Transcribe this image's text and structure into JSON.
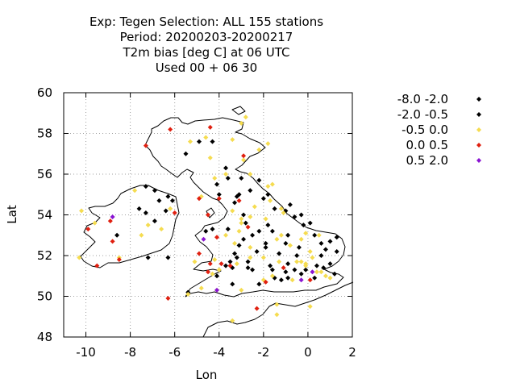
{
  "title_lines": [
    "Exp: Tegen   Selection: ALL    155 stations",
    "Period: 20200203-20200217",
    "T2m bias [deg C] at  06 UTC",
    "Used  00 + 06 30"
  ],
  "chart_data": {
    "type": "scatter",
    "xlabel": "Lon",
    "ylabel": "Lat",
    "xlim": [
      -11,
      2
    ],
    "ylim": [
      48,
      60
    ],
    "xticks": [
      -10,
      -8,
      -6,
      -4,
      -2,
      0,
      2
    ],
    "yticks": [
      48,
      50,
      52,
      54,
      56,
      58,
      60
    ],
    "grid": true,
    "legend_position": "right",
    "series": [
      {
        "name": "-8.0 -2.0",
        "color": "#000000",
        "points": [
          [
            -7.3,
            55.4
          ],
          [
            -6.9,
            55.2
          ],
          [
            -6.3,
            54.9
          ],
          [
            -6.1,
            54.7
          ],
          [
            -6.7,
            54.7
          ],
          [
            -6.4,
            54.2
          ],
          [
            -7.6,
            54.3
          ],
          [
            -7.3,
            54.1
          ],
          [
            -6.9,
            53.7
          ],
          [
            -8.6,
            53.0
          ],
          [
            -7.2,
            51.9
          ],
          [
            -6.3,
            51.9
          ],
          [
            -5.4,
            50.2
          ],
          [
            -5.5,
            57.0
          ],
          [
            -4.9,
            57.6
          ],
          [
            -4.3,
            57.6
          ],
          [
            -3.7,
            56.3
          ],
          [
            -3.0,
            55.8
          ],
          [
            -2.2,
            55.7
          ],
          [
            -2.6,
            55.2
          ],
          [
            -1.8,
            55.0
          ],
          [
            -3.1,
            55.0
          ],
          [
            -4.1,
            55.5
          ],
          [
            -4.0,
            55.0
          ],
          [
            -3.3,
            54.6
          ],
          [
            -2.9,
            54.0
          ],
          [
            -1.5,
            54.3
          ],
          [
            -1.0,
            54.2
          ],
          [
            -0.6,
            53.9
          ],
          [
            -0.3,
            54.0
          ],
          [
            -2.8,
            53.6
          ],
          [
            -3.6,
            53.3
          ],
          [
            -1.8,
            53.5
          ],
          [
            -1.6,
            53.2
          ],
          [
            -2.5,
            53.0
          ],
          [
            -1.9,
            52.6
          ],
          [
            -1.0,
            52.6
          ],
          [
            -1.3,
            52.1
          ],
          [
            -0.2,
            53.5
          ],
          [
            0.1,
            53.6
          ],
          [
            0.3,
            53.0
          ],
          [
            0.6,
            52.6
          ],
          [
            1.0,
            52.7
          ],
          [
            1.3,
            52.9
          ],
          [
            1.3,
            52.2
          ],
          [
            0.8,
            52.3
          ],
          [
            -0.4,
            52.4
          ],
          [
            -2.3,
            52.2
          ],
          [
            -3.1,
            52.5
          ],
          [
            -3.3,
            52.1
          ],
          [
            -3.2,
            51.9
          ],
          [
            -2.7,
            51.7
          ],
          [
            -2.7,
            51.4
          ],
          [
            -1.7,
            51.5
          ],
          [
            -1.6,
            51.3
          ],
          [
            -0.9,
            51.6
          ],
          [
            -0.6,
            51.3
          ],
          [
            -0.1,
            51.3
          ],
          [
            -1.2,
            50.8
          ],
          [
            -1.5,
            50.9
          ],
          [
            -3.7,
            51.5
          ],
          [
            -4.1,
            51.0
          ],
          [
            -3.4,
            50.6
          ],
          [
            -2.2,
            50.6
          ],
          [
            -0.9,
            50.9
          ],
          [
            0.4,
            51.5
          ],
          [
            0.3,
            50.9
          ],
          [
            1.0,
            51.6
          ],
          [
            0.6,
            52.0
          ],
          [
            1.2,
            51.1
          ],
          [
            -4.6,
            53.2
          ],
          [
            -4.3,
            53.3
          ],
          [
            -3.4,
            51.4
          ]
        ]
      },
      {
        "name": "-2.0 -0.5",
        "color": "#000000",
        "points": [
          [
            -3.6,
            55.8
          ],
          [
            -3.2,
            54.9
          ],
          [
            -2.0,
            54.8
          ],
          [
            -0.8,
            54.5
          ],
          [
            -1.9,
            52.4
          ],
          [
            -3.5,
            51.7
          ],
          [
            -2.5,
            51.3
          ],
          [
            -0.3,
            51.1
          ],
          [
            0.7,
            51.4
          ],
          [
            -0.5,
            52.0
          ],
          [
            -2.2,
            53.2
          ],
          [
            -0.9,
            53.0
          ],
          [
            -1.0,
            51.2
          ],
          [
            -2.9,
            52.8
          ]
        ]
      },
      {
        "name": "-0.5 0.0",
        "color": "#f5dc50",
        "points": [
          [
            -10.2,
            54.2
          ],
          [
            -7.8,
            55.2
          ],
          [
            -8.5,
            51.9
          ],
          [
            -10.3,
            51.9
          ],
          [
            -6.6,
            53.3
          ],
          [
            -7.2,
            53.5
          ],
          [
            -4.6,
            57.8
          ],
          [
            -5.3,
            57.6
          ],
          [
            -3.0,
            58.5
          ],
          [
            -2.8,
            58.8
          ],
          [
            -3.4,
            57.7
          ],
          [
            -2.2,
            57.2
          ],
          [
            -1.8,
            57.5
          ],
          [
            -4.4,
            56.8
          ],
          [
            -3.7,
            56.0
          ],
          [
            -4.2,
            55.8
          ],
          [
            -4.8,
            54.9
          ],
          [
            -2.9,
            56.7
          ],
          [
            -2.6,
            56.0
          ],
          [
            -1.8,
            55.4
          ],
          [
            -1.6,
            55.5
          ],
          [
            -2.6,
            53.9
          ],
          [
            -3.0,
            53.8
          ],
          [
            -1.9,
            53.8
          ],
          [
            -1.2,
            54.3
          ],
          [
            -1.1,
            54.1
          ],
          [
            -3.4,
            54.2
          ],
          [
            -3.0,
            53.6
          ],
          [
            -3.1,
            53.2
          ],
          [
            -1.2,
            53.0
          ],
          [
            -2.6,
            52.4
          ],
          [
            -1.4,
            52.8
          ],
          [
            -0.8,
            52.5
          ],
          [
            -2.0,
            51.9
          ],
          [
            -1.3,
            51.7
          ],
          [
            -0.5,
            51.7
          ],
          [
            -0.1,
            51.6
          ],
          [
            -0.3,
            51.7
          ],
          [
            0.1,
            52.2
          ],
          [
            0.2,
            51.9
          ],
          [
            -0.3,
            52.8
          ],
          [
            -0.1,
            53.1
          ],
          [
            0.5,
            53.0
          ],
          [
            -5.1,
            51.7
          ],
          [
            -4.2,
            51.8
          ],
          [
            -4.0,
            51.3
          ],
          [
            -3.2,
            51.6
          ],
          [
            -4.8,
            50.4
          ],
          [
            -4.1,
            50.3
          ],
          [
            -3.0,
            50.3
          ],
          [
            -2.0,
            50.8
          ],
          [
            -1.6,
            51.0
          ],
          [
            -0.7,
            50.8
          ],
          [
            -3.4,
            48.8
          ],
          [
            -1.4,
            49.6
          ],
          [
            0.1,
            49.5
          ],
          [
            -0.1,
            51.5
          ],
          [
            0.4,
            51.2
          ],
          [
            0.8,
            51.0
          ],
          [
            1.0,
            50.9
          ],
          [
            -3.3,
            52.6
          ],
          [
            -3.7,
            53.0
          ],
          [
            -2.4,
            54.4
          ],
          [
            -1.7,
            54.7
          ],
          [
            -5.4,
            50.1
          ],
          [
            -4.3,
            51.1
          ],
          [
            -2.6,
            51.9
          ],
          [
            -1.4,
            49.1
          ],
          [
            0.6,
            51.2
          ],
          [
            -9.6,
            53.6
          ],
          [
            -7.5,
            53.0
          ],
          [
            -6.2,
            54.3
          ]
        ]
      },
      {
        "name": "0.0 0.5",
        "color": "#e02010",
        "points": [
          [
            -6.2,
            58.2
          ],
          [
            -7.3,
            57.4
          ],
          [
            -4.4,
            58.3
          ],
          [
            -2.9,
            56.9
          ],
          [
            -4.9,
            54.8
          ],
          [
            -4.0,
            54.8
          ],
          [
            -4.5,
            54.0
          ],
          [
            -3.1,
            54.7
          ],
          [
            -2.7,
            53.4
          ],
          [
            -4.1,
            52.9
          ],
          [
            -3.5,
            51.5
          ],
          [
            -3.9,
            51.6
          ],
          [
            -4.4,
            51.6
          ],
          [
            -4.5,
            51.2
          ],
          [
            -4.9,
            52.1
          ],
          [
            -1.9,
            50.7
          ],
          [
            -2.3,
            49.4
          ],
          [
            -1.1,
            51.4
          ],
          [
            0.1,
            50.8
          ],
          [
            -6.3,
            49.9
          ],
          [
            -8.8,
            52.7
          ],
          [
            -9.9,
            53.3
          ],
          [
            -8.5,
            51.8
          ],
          [
            -9.5,
            51.5
          ],
          [
            -8.9,
            53.7
          ],
          [
            -6.0,
            54.1
          ]
        ]
      },
      {
        "name": "0.5 2.0",
        "color": "#8a14d2",
        "points": [
          [
            -8.8,
            53.9
          ],
          [
            -4.7,
            52.8
          ],
          [
            -4.1,
            50.3
          ],
          [
            -0.3,
            50.8
          ],
          [
            0.2,
            51.2
          ]
        ]
      }
    ]
  }
}
